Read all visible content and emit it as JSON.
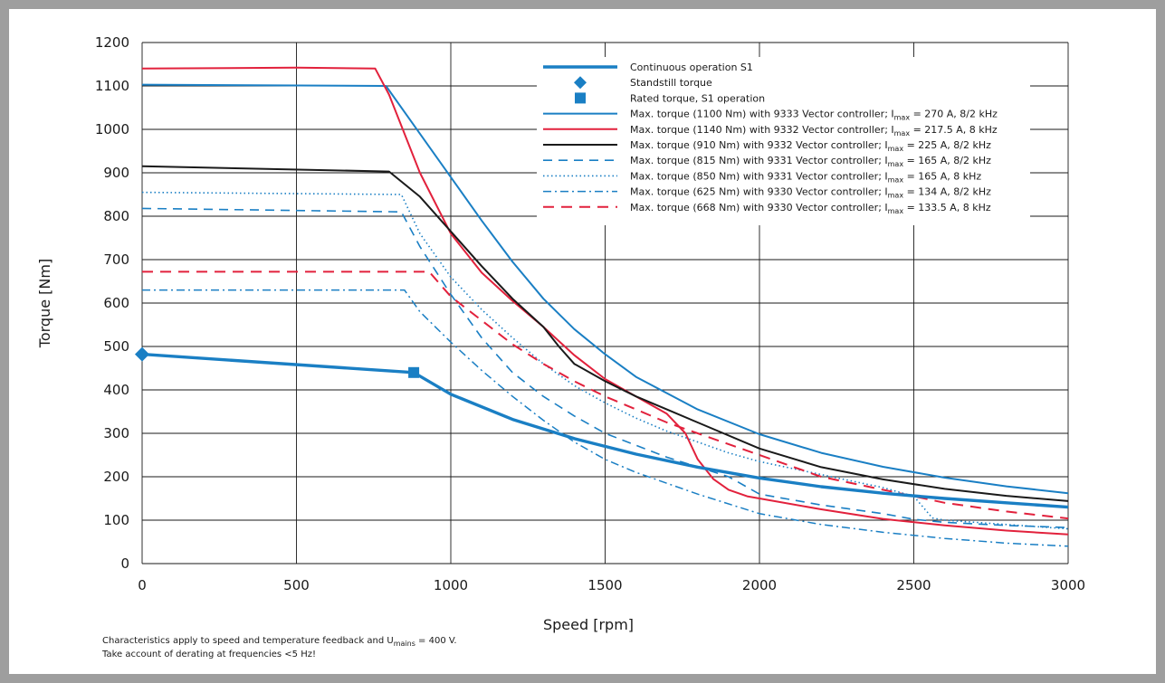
{
  "chart_data": {
    "type": "line",
    "xlabel": "Speed [rpm]",
    "ylabel": "Torque [Nm]",
    "xlim": [
      0,
      3000
    ],
    "ylim": [
      0,
      1200
    ],
    "xticks": [
      "0",
      "500",
      "1000",
      "1500",
      "2000",
      "2500",
      "3000"
    ],
    "yticks": [
      "0",
      "100",
      "200",
      "300",
      "400",
      "500",
      "600",
      "700",
      "800",
      "900",
      "1000",
      "1100",
      "1200"
    ],
    "grid": true,
    "legend_position": "top-right",
    "series": [
      {
        "name": "Continuous operation S1",
        "color": "#1a7fc4",
        "style": "thick",
        "points": [
          [
            0,
            482
          ],
          [
            880,
            440
          ],
          [
            1000,
            390
          ],
          [
            1200,
            332
          ],
          [
            1400,
            288
          ],
          [
            1600,
            252
          ],
          [
            1800,
            222
          ],
          [
            2000,
            197
          ],
          [
            2200,
            177
          ],
          [
            2400,
            162
          ],
          [
            2600,
            150
          ],
          [
            2800,
            140
          ],
          [
            3000,
            130
          ]
        ]
      },
      {
        "name": "Max. torque (1100 Nm) with 9333 Vector controller; I_max = 270 A, 8/2 kHz",
        "color": "#1a7fc4",
        "style": "solid",
        "points": [
          [
            0,
            1103
          ],
          [
            790,
            1100
          ],
          [
            900,
            990
          ],
          [
            1000,
            890
          ],
          [
            1100,
            790
          ],
          [
            1200,
            695
          ],
          [
            1300,
            610
          ],
          [
            1400,
            540
          ],
          [
            1500,
            482
          ],
          [
            1600,
            430
          ],
          [
            1800,
            355
          ],
          [
            2000,
            298
          ],
          [
            2200,
            255
          ],
          [
            2400,
            223
          ],
          [
            2600,
            198
          ],
          [
            2800,
            178
          ],
          [
            3000,
            162
          ]
        ]
      },
      {
        "name": "Max. torque (1140 Nm) with 9332 Vector controller; I_max = 217.5 A, 8 kHz",
        "color": "#e2213c",
        "style": "solid",
        "points": [
          [
            0,
            1140
          ],
          [
            500,
            1142
          ],
          [
            755,
            1140
          ],
          [
            800,
            1080
          ],
          [
            900,
            900
          ],
          [
            1000,
            760
          ],
          [
            1100,
            670
          ],
          [
            1200,
            605
          ],
          [
            1300,
            545
          ],
          [
            1400,
            480
          ],
          [
            1500,
            425
          ],
          [
            1600,
            385
          ],
          [
            1700,
            345
          ],
          [
            1760,
            300
          ],
          [
            1800,
            240
          ],
          [
            1850,
            195
          ],
          [
            1900,
            170
          ],
          [
            1960,
            155
          ],
          [
            2000,
            150
          ],
          [
            2200,
            125
          ],
          [
            2400,
            103
          ],
          [
            2600,
            88
          ],
          [
            2800,
            76
          ],
          [
            3000,
            67
          ]
        ]
      },
      {
        "name": "Max. torque (910 Nm) with 9332 Vector controller; I_max = 225 A, 8/2 kHz",
        "color": "#1a1a1a",
        "style": "solid",
        "points": [
          [
            0,
            915
          ],
          [
            800,
            903
          ],
          [
            900,
            845
          ],
          [
            1000,
            765
          ],
          [
            1100,
            685
          ],
          [
            1200,
            610
          ],
          [
            1300,
            545
          ],
          [
            1350,
            500
          ],
          [
            1400,
            460
          ],
          [
            1500,
            420
          ],
          [
            1600,
            385
          ],
          [
            1700,
            355
          ],
          [
            1800,
            325
          ],
          [
            2000,
            265
          ],
          [
            2200,
            222
          ],
          [
            2400,
            194
          ],
          [
            2600,
            172
          ],
          [
            2800,
            156
          ],
          [
            3000,
            144
          ]
        ]
      },
      {
        "name": "Max. torque (815 Nm) with 9331 Vector controller; I_max = 165 A, 8/2 kHz",
        "color": "#1a7fc4",
        "style": "dash",
        "points": [
          [
            0,
            818
          ],
          [
            840,
            810
          ],
          [
            900,
            730
          ],
          [
            1000,
            620
          ],
          [
            1100,
            520
          ],
          [
            1200,
            440
          ],
          [
            1300,
            385
          ],
          [
            1400,
            340
          ],
          [
            1500,
            300
          ],
          [
            1700,
            245
          ],
          [
            1900,
            200
          ],
          [
            2000,
            160
          ],
          [
            2200,
            135
          ],
          [
            2400,
            115
          ],
          [
            2500,
            102
          ],
          [
            2600,
            95
          ],
          [
            2800,
            88
          ],
          [
            3000,
            83
          ]
        ]
      },
      {
        "name": "Max. torque (850 Nm) with 9331 Vector controller; I_max = 165 A, 8 kHz",
        "color": "#1a7fc4",
        "style": "dot",
        "points": [
          [
            0,
            855
          ],
          [
            840,
            850
          ],
          [
            900,
            760
          ],
          [
            1000,
            660
          ],
          [
            1100,
            585
          ],
          [
            1200,
            520
          ],
          [
            1300,
            460
          ],
          [
            1400,
            410
          ],
          [
            1500,
            370
          ],
          [
            1600,
            335
          ],
          [
            1700,
            305
          ],
          [
            1800,
            280
          ],
          [
            1900,
            255
          ],
          [
            2000,
            235
          ],
          [
            2200,
            205
          ],
          [
            2400,
            175
          ],
          [
            2500,
            155
          ],
          [
            2560,
            105
          ],
          [
            2600,
            100
          ],
          [
            2800,
            90
          ],
          [
            3000,
            80
          ]
        ]
      },
      {
        "name": "Max. torque (625 Nm) with 9330 Vector controller; I_max = 134 A, 8/2 kHz",
        "color": "#1a7fc4",
        "style": "dashdot",
        "points": [
          [
            0,
            630
          ],
          [
            850,
            630
          ],
          [
            900,
            580
          ],
          [
            1000,
            510
          ],
          [
            1100,
            445
          ],
          [
            1200,
            385
          ],
          [
            1300,
            330
          ],
          [
            1400,
            280
          ],
          [
            1500,
            240
          ],
          [
            1600,
            210
          ],
          [
            1800,
            160
          ],
          [
            2000,
            115
          ],
          [
            2200,
            90
          ],
          [
            2400,
            72
          ],
          [
            2600,
            58
          ],
          [
            2800,
            47
          ],
          [
            3000,
            40
          ]
        ]
      },
      {
        "name": "Max. torque (668 Nm) with 9330 Vector controller; I_max = 133.5 A, 8 kHz",
        "color": "#e2213c",
        "style": "longdash",
        "points": [
          [
            0,
            672
          ],
          [
            930,
            672
          ],
          [
            1000,
            615
          ],
          [
            1100,
            560
          ],
          [
            1200,
            505
          ],
          [
            1300,
            460
          ],
          [
            1400,
            420
          ],
          [
            1500,
            385
          ],
          [
            1600,
            355
          ],
          [
            1700,
            325
          ],
          [
            1800,
            300
          ],
          [
            2000,
            250
          ],
          [
            2200,
            200
          ],
          [
            2400,
            170
          ],
          [
            2600,
            140
          ],
          [
            2800,
            120
          ],
          [
            3000,
            104
          ]
        ]
      }
    ],
    "markers": [
      {
        "name": "Standstill torque",
        "shape": "diamond",
        "color": "#1a7fc4",
        "x": 0,
        "y": 482
      },
      {
        "name": "Rated torque, S1 operation",
        "shape": "square",
        "color": "#1a7fc4",
        "x": 880,
        "y": 440
      }
    ],
    "legend": [
      {
        "style": "thick",
        "color": "#1a7fc4",
        "text": "Continuous operation S1"
      },
      {
        "style": "diamond",
        "color": "#1a7fc4",
        "text": "Standstill torque"
      },
      {
        "style": "square",
        "color": "#1a7fc4",
        "text": "Rated torque, S1 operation"
      },
      {
        "style": "solid",
        "color": "#1a7fc4",
        "pre": "Max. torque (1100 Nm) with 9333 Vector controller; I",
        "sub": "max",
        "post": " = 270 A, 8/2 kHz"
      },
      {
        "style": "solid",
        "color": "#e2213c",
        "pre": "Max. torque (1140 Nm) with 9332 Vector controller; I",
        "sub": "max",
        "post": " = 217.5 A, 8 kHz"
      },
      {
        "style": "solid",
        "color": "#1a1a1a",
        "pre": "Max. torque (910 Nm) with 9332 Vector controller; I",
        "sub": "max",
        "post": " = 225 A, 8/2 kHz"
      },
      {
        "style": "dash",
        "color": "#1a7fc4",
        "pre": "Max. torque (815 Nm) with 9331 Vector controller; I",
        "sub": "max",
        "post": " = 165 A, 8/2 kHz"
      },
      {
        "style": "dot",
        "color": "#1a7fc4",
        "pre": "Max. torque (850 Nm) with 9331 Vector controller; I",
        "sub": "max",
        "post": " = 165 A, 8 kHz"
      },
      {
        "style": "dashdot",
        "color": "#1a7fc4",
        "pre": "Max. torque (625 Nm) with 9330 Vector controller; I",
        "sub": "max",
        "post": " = 134 A, 8/2 kHz"
      },
      {
        "style": "longdash",
        "color": "#e2213c",
        "pre": "Max. torque (668 Nm) with 9330 Vector controller; I",
        "sub": "max",
        "post": " = 133.5 A, 8 kHz"
      }
    ]
  },
  "footnote": {
    "line1_pre": "Characteristics apply to speed and temperature feedback and U",
    "line1_sub": "mains",
    "line1_post": " = 400 V.",
    "line2": "Take account of derating at frequencies <5 Hz!"
  },
  "colors": {
    "frame": "#9e9e9e",
    "blue": "#1a7fc4",
    "red": "#e2213c",
    "black": "#1a1a1a"
  }
}
